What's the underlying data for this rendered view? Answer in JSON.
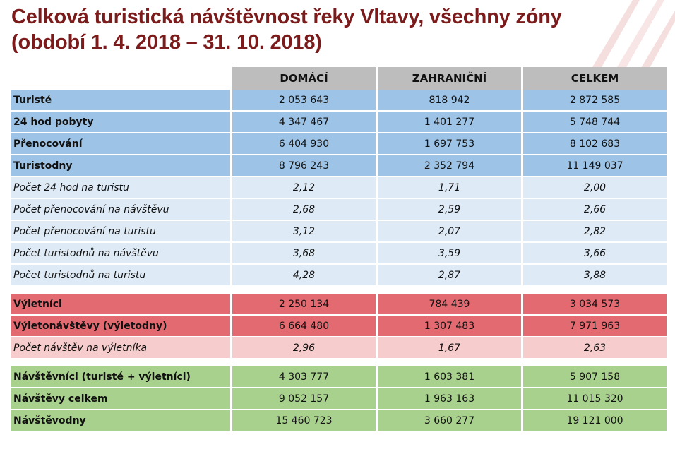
{
  "title": {
    "line1": "Celková turistická návštěvnost řeky Vltavy, všechny zóny",
    "line2": "(období 1. 4. 2018 – 31. 10. 2018)"
  },
  "columns": [
    "DOMÁCÍ",
    "ZAHRANIČNÍ",
    "CELKEM"
  ],
  "colors": {
    "title": "#7b1b1b",
    "header": "#bdbdbd",
    "blue": "#9dc3e6",
    "light_blue": "#deebf7",
    "red": "#e46a72",
    "pink": "#f6cccc",
    "green": "#a9d18e"
  },
  "groups": {
    "tourists": [
      {
        "label": "Turisté",
        "values": [
          "2 053 643",
          "818 942",
          "2 872 585"
        ]
      },
      {
        "label": "24 hod pobyty",
        "values": [
          "4 347 467",
          "1 401 277",
          "5 748 744"
        ]
      },
      {
        "label": "Přenocování",
        "values": [
          "6 404 930",
          "1 697 753",
          "8 102 683"
        ]
      },
      {
        "label": "Turistodny",
        "values": [
          "8 796 243",
          "2 352 794",
          "11 149 037"
        ]
      }
    ],
    "tourist_ratios": [
      {
        "label": "Počet 24 hod na turistu",
        "values": [
          "2,12",
          "1,71",
          "2,00"
        ]
      },
      {
        "label": "Počet přenocování na návštěvu",
        "values": [
          "2,68",
          "2,59",
          "2,66"
        ]
      },
      {
        "label": "Počet přenocování na turistu",
        "values": [
          "3,12",
          "2,07",
          "2,82"
        ]
      },
      {
        "label": "Počet turistodnů na návštěvu",
        "values": [
          "3,68",
          "3,59",
          "3,66"
        ]
      },
      {
        "label": "Počet turistodnů na turistu",
        "values": [
          "4,28",
          "2,87",
          "3,88"
        ]
      }
    ],
    "excursionists": [
      {
        "label": "Výletníci",
        "values": [
          "2 250 134",
          "784 439",
          "3 034 573"
        ]
      },
      {
        "label": "Výletonávštěvy (výletodny)",
        "values": [
          "6 664 480",
          "1 307 483",
          "7 971 963"
        ]
      }
    ],
    "excursionist_ratios": [
      {
        "label": "Počet návštěv na výletníka",
        "values": [
          "2,96",
          "1,67",
          "2,63"
        ]
      }
    ],
    "totals": [
      {
        "label": "Návštěvníci (turisté + výletníci)",
        "values": [
          "4 303 777",
          "1 603 381",
          "5 907 158"
        ]
      },
      {
        "label": "Návštěvy celkem",
        "values": [
          "9 052 157",
          "1 963 163",
          "11 015 320"
        ]
      },
      {
        "label": "Návštěvodny",
        "values": [
          "15 460 723",
          "3 660 277",
          "19 121 000"
        ]
      }
    ]
  }
}
